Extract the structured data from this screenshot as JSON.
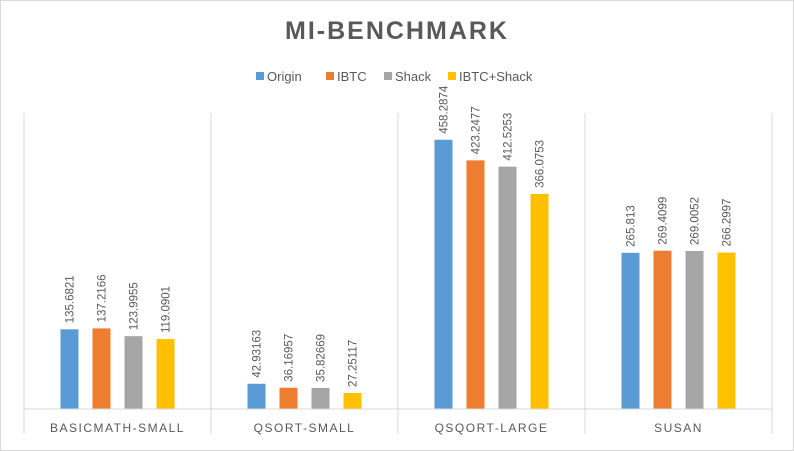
{
  "chart_data": {
    "type": "bar",
    "title": "MI-BENCHMARK",
    "categories": [
      "BASICMATH-SMALL",
      "QSORT-SMALL",
      "QSQORT-LARGE",
      "SUSAN"
    ],
    "series": [
      {
        "name": "Origin",
        "color": "#5b9bd5",
        "values": [
          135.6821,
          42.93163,
          458.2874,
          265.813
        ],
        "labels": [
          "135.6821",
          "42.93163",
          "458.2874",
          "265.813"
        ]
      },
      {
        "name": "IBTC",
        "color": "#ed7d31",
        "values": [
          137.2166,
          36.16957,
          423.2477,
          269.4099
        ],
        "labels": [
          "137.2166",
          "36.16957",
          "423.2477",
          "269.4099"
        ]
      },
      {
        "name": "Shack",
        "color": "#a5a5a5",
        "values": [
          123.9955,
          35.82669,
          412.5253,
          269.0052
        ],
        "labels": [
          "123.9955",
          "35.82669",
          "412.5253",
          "269.0052"
        ]
      },
      {
        "name": "IBTC+Shack",
        "color": "#ffc000",
        "values": [
          119.0901,
          27.25117,
          366.0753,
          266.2997
        ],
        "labels": [
          "119.0901",
          "27.25117",
          "366.0753",
          "266.2997"
        ]
      }
    ],
    "ylim": [
      0,
      500
    ],
    "y_axis_visible": false,
    "grid": false,
    "category_separators": true,
    "legend_position": "top-center",
    "data_labels": "rotated-vertical-above-bars"
  }
}
